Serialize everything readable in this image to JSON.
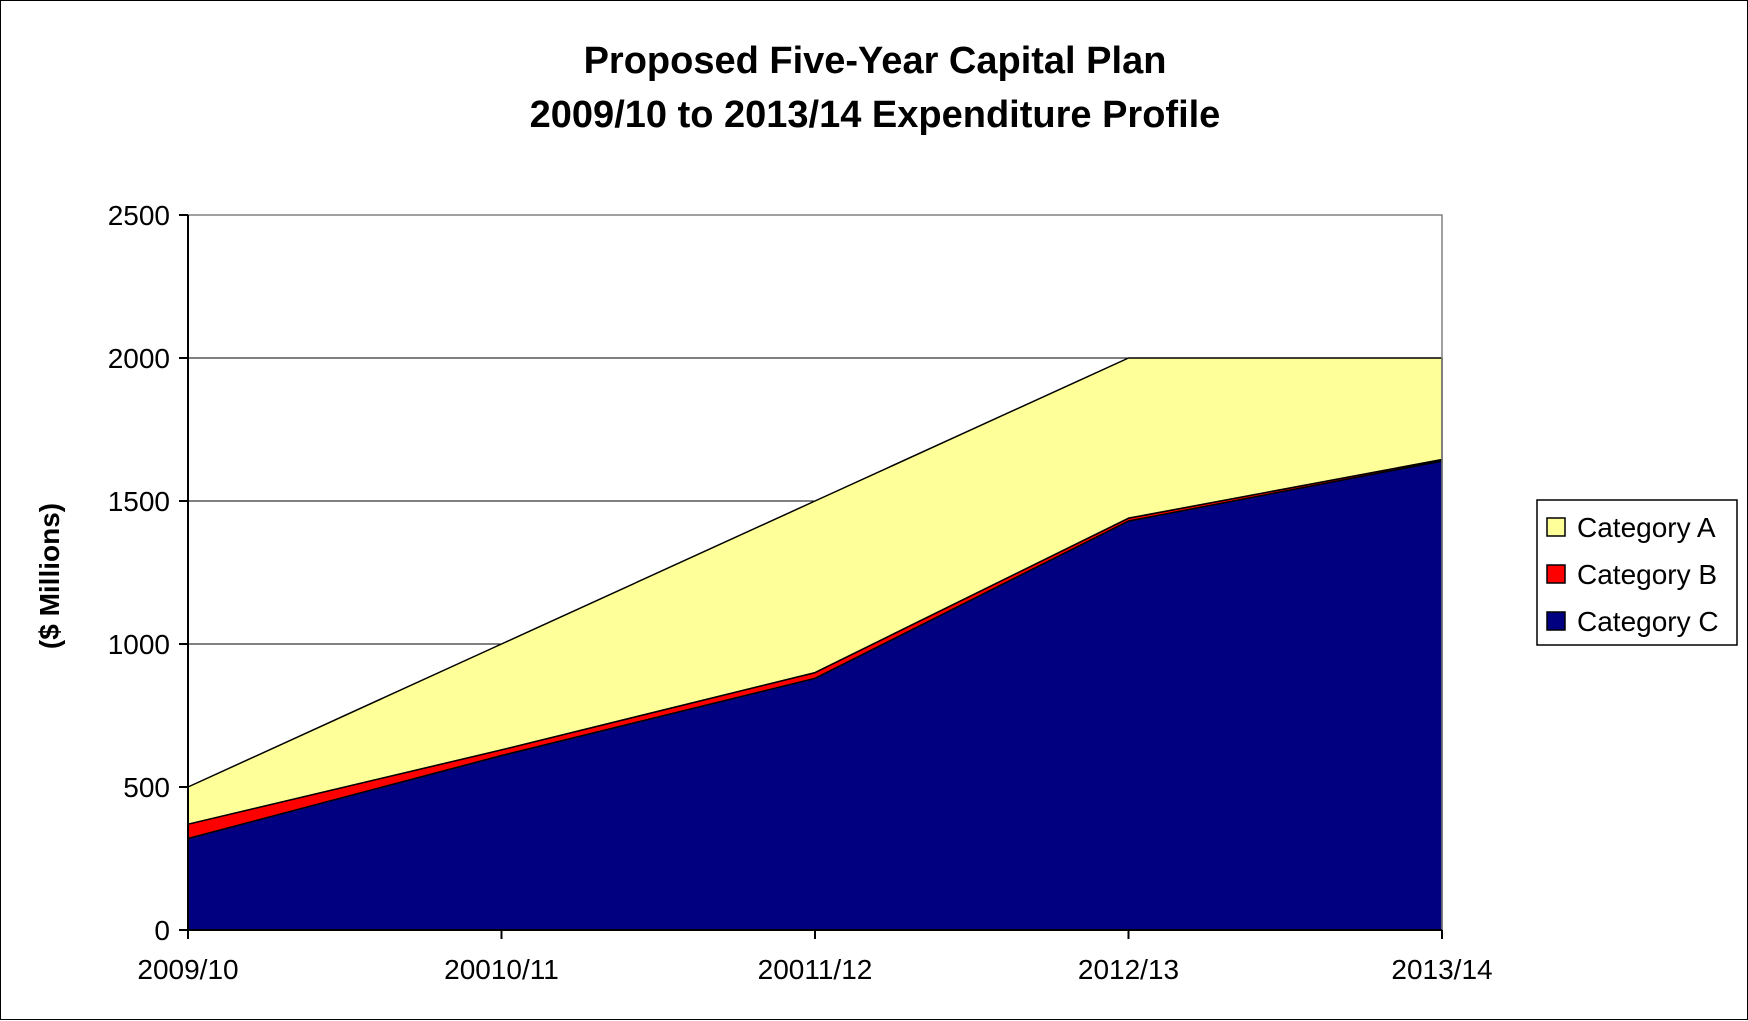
{
  "chart_data": {
    "type": "area",
    "stacked": true,
    "title": "Proposed Five-Year Capital Plan",
    "subtitle": "2009/10 to 2013/14 Expenditure Profile",
    "xlabel": "",
    "ylabel": "($ Millions)",
    "categories": [
      "2009/10",
      "20010/11",
      "20011/12",
      "2012/13",
      "2013/14"
    ],
    "ylim": [
      0,
      2500
    ],
    "yticks": [
      "0",
      "500",
      "1000",
      "1500",
      "2000",
      "2500"
    ],
    "grid": true,
    "legend_position": "right",
    "series": [
      {
        "name": "Category C",
        "values": [
          320,
          610,
          880,
          1430,
          1640
        ],
        "color": "#000080"
      },
      {
        "name": "Category B",
        "values": [
          50,
          20,
          20,
          10,
          5
        ],
        "color": "#FF0000"
      },
      {
        "name": "Category A",
        "values": [
          130,
          370,
          600,
          560,
          355
        ],
        "color": "#FFFF99"
      }
    ],
    "legend_order": [
      "Category A",
      "Category B",
      "Category C"
    ]
  }
}
